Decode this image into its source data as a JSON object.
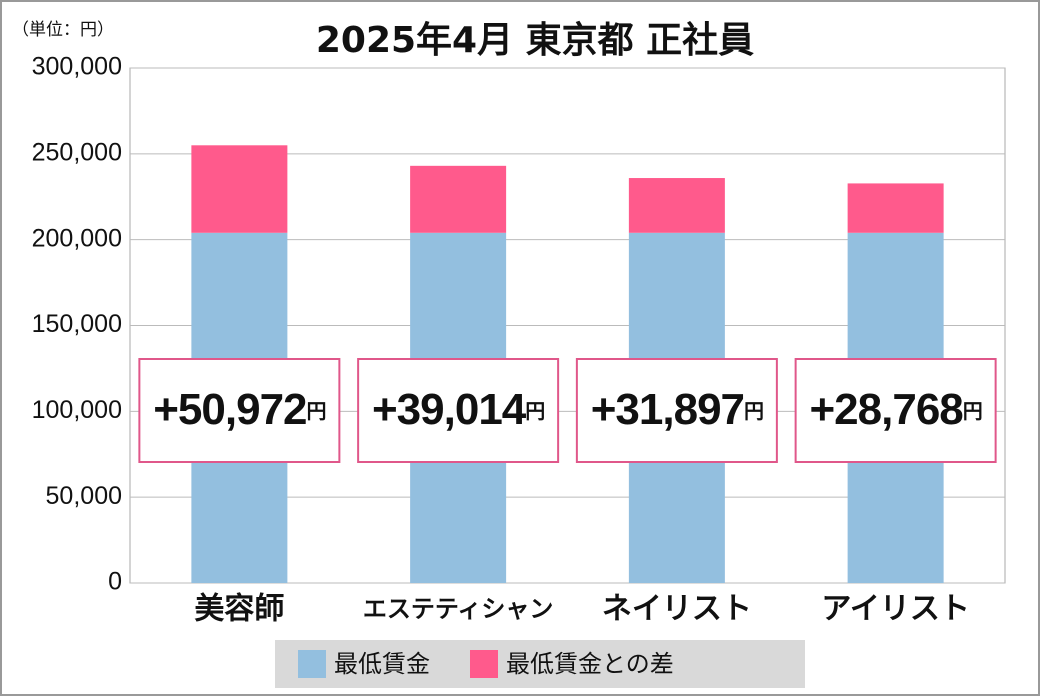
{
  "chart_data": {
    "type": "stacked_bar",
    "title": "2025年4月 東京都 正社員",
    "y_unit": "（単位：円）",
    "categories": [
      "美容師",
      "エステティシャン",
      "ネイリスト",
      "アイリスト"
    ],
    "series": [
      {
        "name": "最低賃金",
        "color": "#93bfdf",
        "values": [
          204000,
          204000,
          204000,
          204000
        ]
      },
      {
        "name": "最低賃金との差",
        "color": "#ff5a8c",
        "values": [
          50972,
          39014,
          31897,
          28768
        ],
        "value_labels": [
          "+50,972円",
          "+39,014円",
          "+31,897円",
          "+28,768円"
        ]
      }
    ],
    "ylim": [
      0,
      300000
    ],
    "yticks": [
      {
        "value": 0,
        "label": "0"
      },
      {
        "value": 50000,
        "label": "50,000"
      },
      {
        "value": 100000,
        "label": "100,000"
      },
      {
        "value": 150000,
        "label": "150,000"
      },
      {
        "value": 200000,
        "label": "200,000"
      },
      {
        "value": 250000,
        "label": "250,000"
      },
      {
        "value": 300000,
        "label": "300,000"
      }
    ],
    "grid": true
  }
}
